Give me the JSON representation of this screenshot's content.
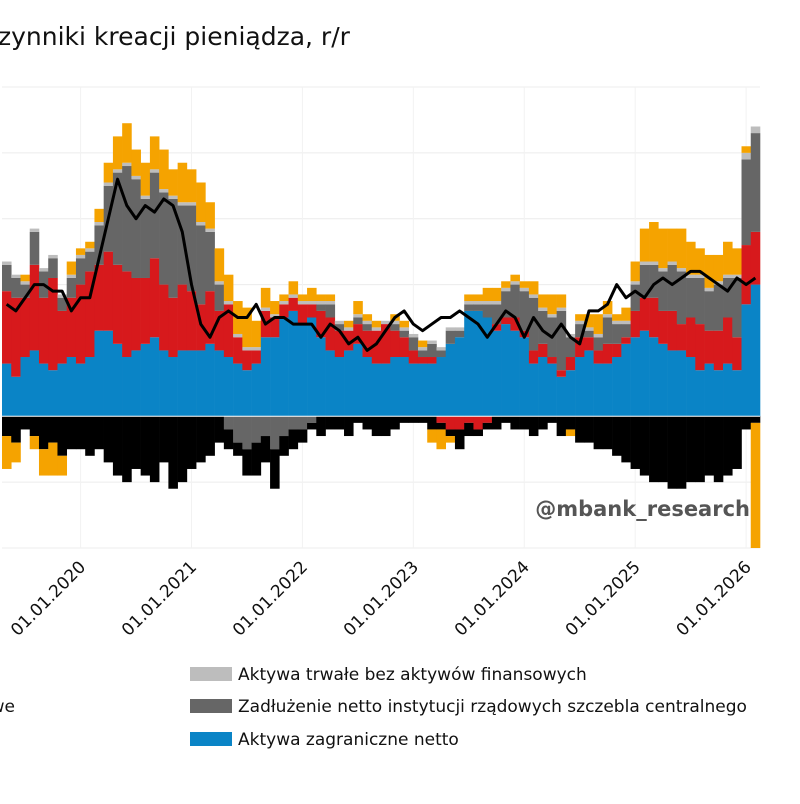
{
  "chart_data": {
    "type": "bar",
    "stacked": true,
    "title": "zynniki kreacji pieniądza, r/r",
    "watermark": "@mbank_research",
    "categories": [
      null,
      null,
      null,
      null,
      null,
      null,
      null,
      null,
      "01.01.2020",
      null,
      null,
      null,
      null,
      null,
      null,
      null,
      null,
      null,
      null,
      null,
      "01.01.2021",
      null,
      null,
      null,
      null,
      null,
      null,
      null,
      null,
      null,
      null,
      null,
      "01.01.2022",
      null,
      null,
      null,
      null,
      null,
      null,
      null,
      null,
      null,
      null,
      null,
      "01.01.2023",
      null,
      null,
      null,
      null,
      null,
      null,
      null,
      null,
      null,
      null,
      null,
      "01.01.2024",
      null,
      null,
      null,
      null,
      null,
      null,
      null,
      null,
      null,
      null,
      null,
      "01.01.2025",
      null,
      null,
      null,
      null,
      null,
      null,
      null,
      null,
      null,
      null,
      null,
      "01.01.2026",
      null
    ],
    "ylim": [
      -20,
      50
    ],
    "yticks": [
      -20,
      -10,
      0,
      10,
      20,
      30,
      40,
      50
    ],
    "grid": true,
    "series": [
      {
        "name": "Aktywa zagraniczne netto",
        "color": "#0a84c6",
        "values": [
          8,
          6,
          9,
          10,
          8,
          7,
          8,
          9,
          8,
          9,
          13,
          13,
          11,
          9,
          10,
          11,
          12,
          10,
          9,
          10,
          10,
          10,
          11,
          10,
          9,
          8,
          7,
          8,
          12,
          12,
          15,
          16,
          14,
          15,
          12,
          10,
          9,
          10,
          11,
          9,
          8,
          8,
          9,
          9,
          8,
          8,
          8,
          9,
          11,
          12,
          16,
          16,
          15,
          13,
          14,
          13,
          12,
          8,
          9,
          8,
          6,
          7,
          9,
          10,
          8,
          8,
          9,
          11,
          12,
          13,
          12,
          11,
          10,
          10,
          9,
          7,
          8,
          7,
          8,
          7,
          17,
          20
        ]
      },
      {
        "name": "we",
        "color": "#d7191c",
        "values": [
          11,
          12,
          9,
          13,
          10,
          14,
          8,
          9,
          12,
          13,
          10,
          12,
          12,
          13,
          11,
          10,
          12,
          10,
          9,
          10,
          9,
          7,
          8,
          6,
          8,
          4,
          3,
          2,
          4,
          3,
          2,
          2,
          3,
          2,
          4,
          5,
          4,
          3,
          3,
          4,
          5,
          6,
          4,
          3,
          2,
          1,
          1,
          -1,
          -2,
          -2,
          -1,
          -2,
          -1,
          1,
          1,
          2,
          1,
          2,
          2,
          1,
          1,
          2,
          3,
          2,
          2,
          3,
          2,
          1,
          4,
          5,
          6,
          5,
          6,
          4,
          6,
          7,
          5,
          6,
          7,
          5,
          9,
          8
        ]
      },
      {
        "name": "Zadłużenie netto instytucji rządowych szczebla centralnego",
        "color": "#666666",
        "values": [
          4,
          3,
          2,
          5,
          4,
          3,
          2,
          3,
          4,
          3,
          6,
          10,
          14,
          16,
          15,
          12,
          13,
          14,
          15,
          12,
          13,
          12,
          9,
          4,
          -2,
          -4,
          -5,
          -4,
          -3,
          -5,
          -3,
          -2,
          -2,
          -1,
          1,
          2,
          1,
          0,
          1,
          1,
          0,
          0,
          1,
          1,
          2,
          1,
          2,
          1,
          2,
          1,
          1,
          1,
          2,
          3,
          4,
          5,
          6,
          8,
          5,
          6,
          9,
          3,
          2,
          1,
          2,
          4,
          3,
          2,
          4,
          5,
          5,
          6,
          7,
          8,
          6,
          7,
          6,
          7,
          6,
          9,
          13,
          15
        ]
      },
      {
        "name": "Aktywa trwałe bez aktywów finansowych",
        "color": "#bdbdbd",
        "values": [
          0.5,
          0.5,
          0.5,
          0.5,
          0.5,
          0.5,
          0.5,
          0.5,
          0.5,
          0.5,
          0.5,
          0.5,
          0.5,
          0.5,
          0.5,
          0.5,
          0.5,
          0.5,
          0.5,
          0.5,
          0.5,
          0.5,
          0.5,
          0.5,
          0.5,
          0.5,
          0.5,
          0.5,
          0.5,
          0.5,
          0.5,
          0.5,
          0.5,
          0.5,
          0.5,
          0.5,
          0.5,
          0.5,
          0.5,
          0.5,
          0.5,
          0.5,
          0.5,
          0.5,
          0.5,
          0.5,
          0.5,
          0.5,
          0.5,
          0.5,
          0.5,
          0.5,
          0.5,
          0.5,
          0.5,
          0.5,
          0.5,
          0.5,
          0.5,
          0.5,
          0.5,
          0.5,
          0.5,
          0.5,
          0.5,
          0.5,
          0.5,
          0.5,
          0.5,
          0.5,
          0.5,
          0.5,
          0.5,
          0.5,
          0.5,
          0.5,
          0.5,
          0.5,
          0.5,
          0.5,
          1,
          1
        ]
      },
      {
        "color": "#000000",
        "values": [
          -3,
          -4,
          -2,
          -3,
          -5,
          -4,
          -6,
          -5,
          -5,
          -6,
          -5,
          -7,
          -9,
          -10,
          -8,
          -9,
          -10,
          -7,
          -11,
          -10,
          -8,
          -7,
          -6,
          -4,
          -3,
          -2,
          -4,
          -5,
          -4,
          -6,
          -3,
          -3,
          -2,
          -1,
          -3,
          -2,
          -2,
          -3,
          -1,
          -2,
          -3,
          -3,
          -2,
          -1,
          -1,
          -1,
          -2,
          -1,
          -1,
          -3,
          -2,
          -1,
          -1,
          -2,
          -1,
          -2,
          -2,
          -3,
          -2,
          -1,
          -3,
          -2,
          -4,
          -4,
          -5,
          -5,
          -6,
          -7,
          -8,
          -9,
          -10,
          -10,
          -11,
          -11,
          -10,
          -10,
          -9,
          -10,
          -9,
          -8,
          -2,
          -1
        ]
      },
      {
        "color": "#f5a300",
        "values": [
          -5,
          -3,
          1,
          -2,
          -4,
          -5,
          -3,
          2,
          1,
          1,
          2,
          3,
          5,
          6,
          4,
          5,
          5,
          6,
          4,
          6,
          5,
          6,
          4,
          5,
          4,
          5,
          6,
          4,
          3,
          2,
          1,
          2,
          1,
          2,
          1,
          1,
          0,
          1,
          2,
          1,
          1,
          0,
          1,
          1,
          0,
          1,
          -2,
          -3,
          -1,
          0,
          1,
          1,
          2,
          2,
          1,
          1,
          1,
          2,
          2,
          3,
          2,
          -1,
          1,
          2,
          3,
          2,
          1,
          2,
          3,
          5,
          6,
          6,
          5,
          6,
          5,
          4,
          5,
          4,
          5,
          4,
          1,
          -19
        ]
      }
    ],
    "line": {
      "color": "#000000",
      "values": [
        17,
        16,
        18,
        20,
        20,
        19,
        19,
        16,
        18,
        18,
        24,
        30,
        36,
        32,
        30,
        32,
        31,
        33,
        32,
        28,
        20,
        14,
        12,
        15,
        16,
        15,
        15,
        17,
        14,
        15,
        15,
        14,
        14,
        14,
        12,
        14,
        13,
        11,
        12,
        10,
        11,
        13,
        15,
        16,
        14,
        13,
        14,
        15,
        15,
        16,
        15,
        14,
        12,
        14,
        16,
        15,
        12,
        15,
        13,
        12,
        14,
        12,
        11,
        16,
        16,
        17,
        20,
        18,
        19,
        18,
        20,
        21,
        20,
        21,
        22,
        22,
        21,
        20,
        19,
        21,
        20,
        21
      ]
    }
  }
}
